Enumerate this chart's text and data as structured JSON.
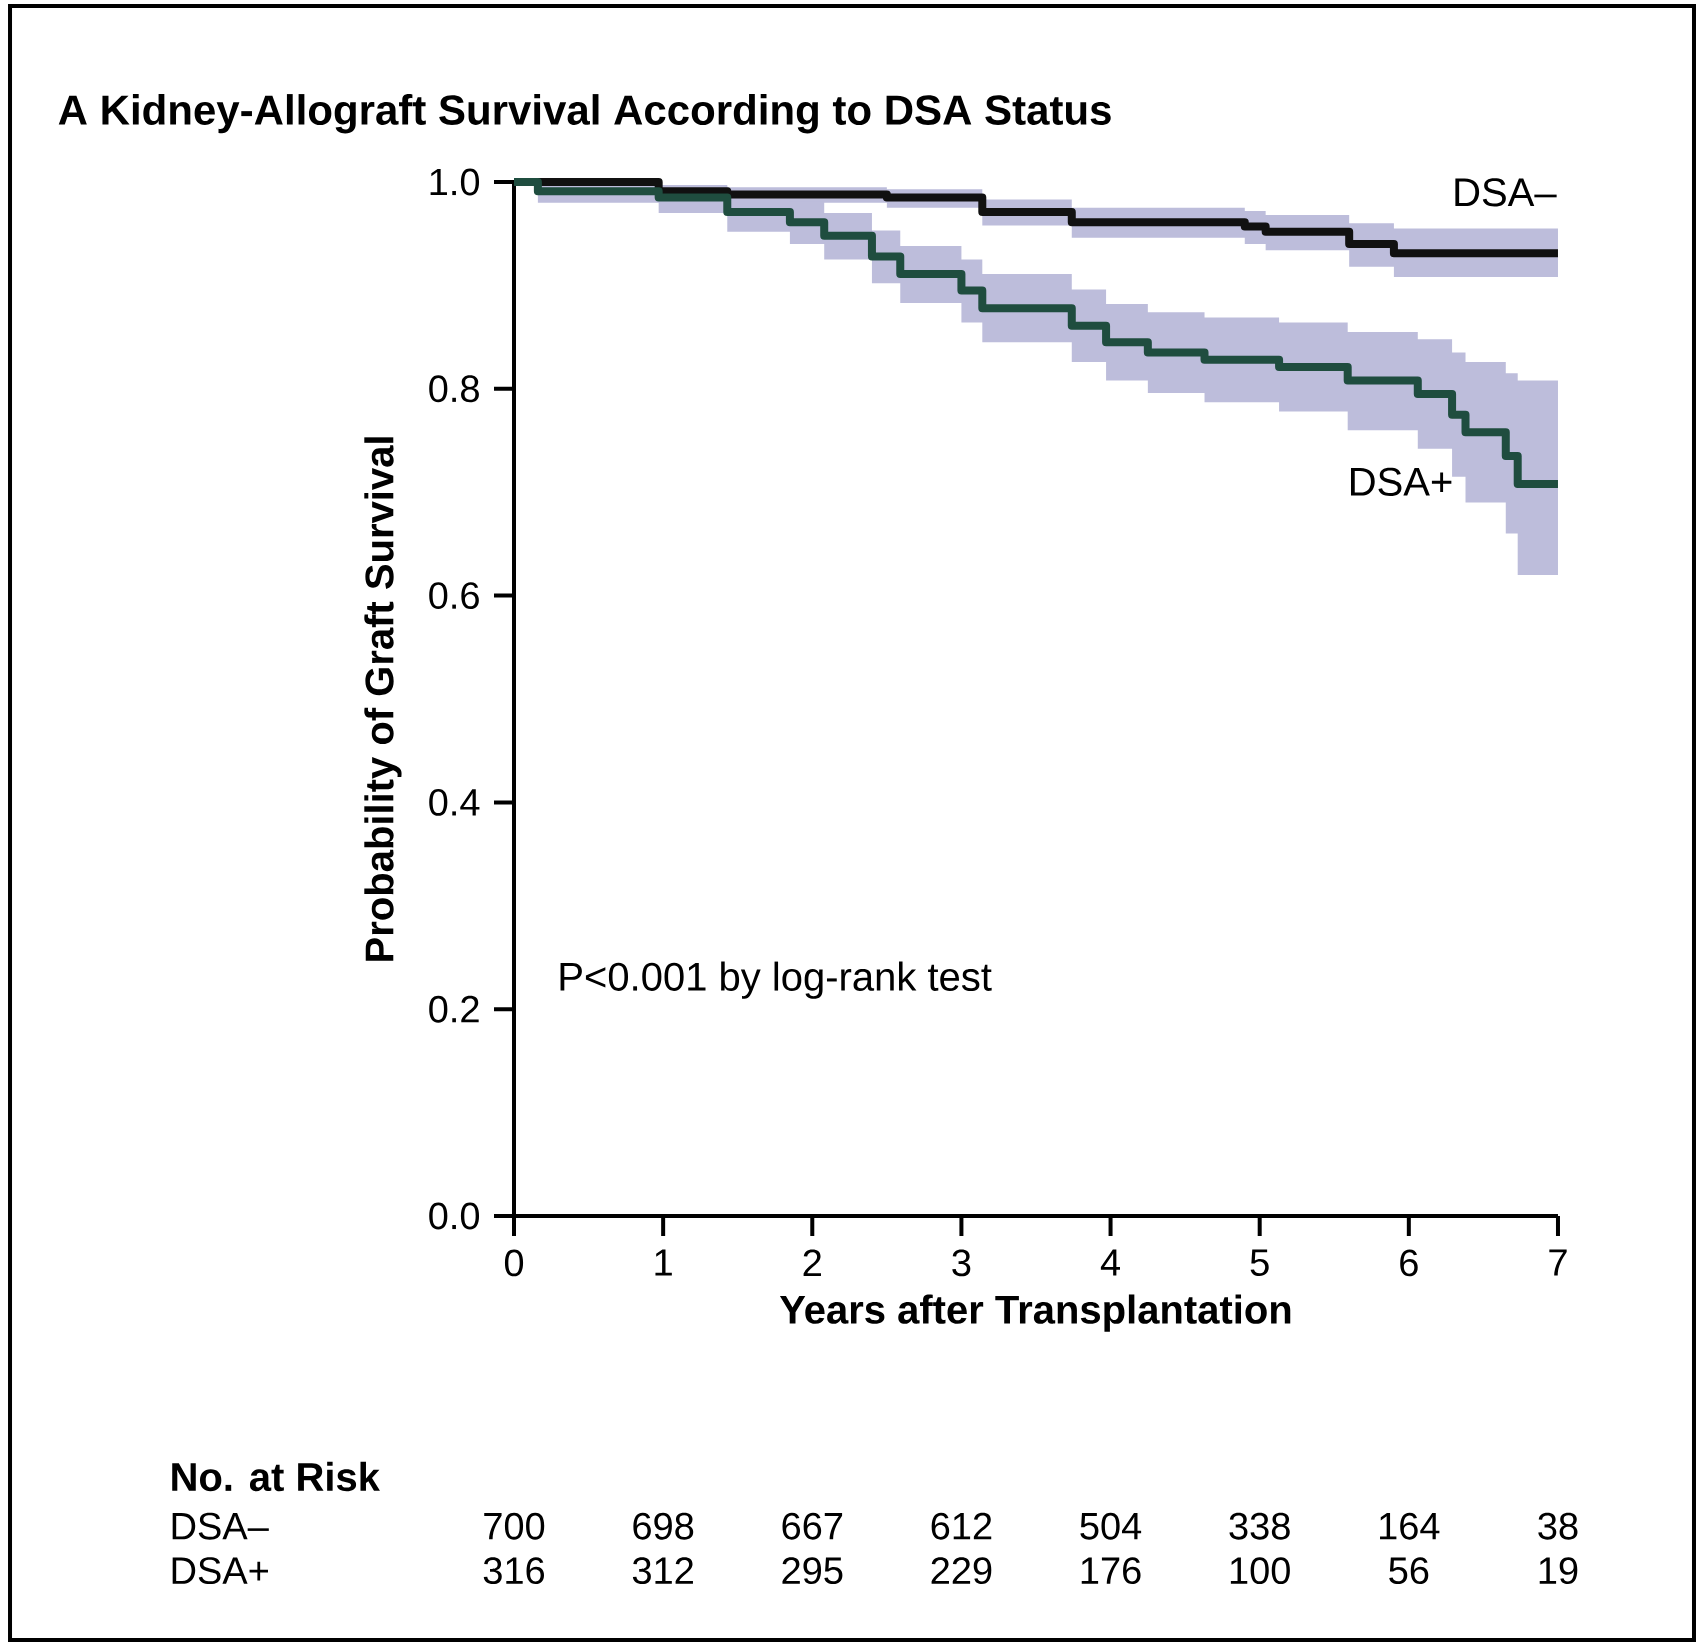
{
  "chart_data": {
    "type": "step",
    "title": "A  Kidney-Allograft Survival According to DSA Status",
    "xlabel": "Years after Transplantation",
    "ylabel": "Probability of Graft Survival",
    "xlim": [
      0,
      7
    ],
    "ylim": [
      0,
      1
    ],
    "xticks": [
      0,
      1,
      2,
      3,
      4,
      5,
      6,
      7
    ],
    "yticks": [
      {
        "value": 0,
        "label": "0.0"
      },
      {
        "value": 0.2,
        "label": "0.2"
      },
      {
        "value": 0.4,
        "label": "0.4"
      },
      {
        "value": 0.6,
        "label": "0.6"
      },
      {
        "value": 0.8,
        "label": "0.8"
      },
      {
        "value": 1,
        "label": "1.0"
      }
    ],
    "series": [
      {
        "name": "DSA–",
        "color": "#111111",
        "x": [
          0,
          0.97,
          1.43,
          2.5,
          3.14,
          3.74,
          4.9,
          5.04,
          5.6,
          5.9,
          7
        ],
        "values": [
          1,
          0.991,
          0.988,
          0.985,
          0.971,
          0.961,
          0.957,
          0.952,
          0.94,
          0.931,
          0.931
        ],
        "lower": [
          1,
          0.985,
          0.98,
          0.975,
          0.958,
          0.946,
          0.94,
          0.934,
          0.918,
          0.908,
          0.908
        ],
        "upper": [
          1,
          0.997,
          0.995,
          0.993,
          0.983,
          0.975,
          0.972,
          0.968,
          0.96,
          0.955,
          0.955
        ]
      },
      {
        "name": "DSA+",
        "color": "#1f4d3f",
        "x": [
          0,
          0.16,
          0.97,
          1.43,
          1.85,
          2.08,
          2.4,
          2.59,
          3.0,
          3.14,
          3.74,
          3.97,
          4.25,
          4.63,
          5.13,
          5.59,
          6.06,
          6.29,
          6.38,
          6.65,
          6.73,
          7
        ],
        "values": [
          1,
          0.991,
          0.985,
          0.971,
          0.961,
          0.948,
          0.928,
          0.911,
          0.895,
          0.878,
          0.861,
          0.845,
          0.835,
          0.828,
          0.821,
          0.808,
          0.795,
          0.775,
          0.758,
          0.735,
          0.708,
          0.708
        ],
        "lower": [
          1,
          0.98,
          0.97,
          0.952,
          0.94,
          0.925,
          0.902,
          0.883,
          0.864,
          0.845,
          0.826,
          0.808,
          0.796,
          0.787,
          0.778,
          0.76,
          0.742,
          0.715,
          0.69,
          0.66,
          0.62,
          0.62
        ],
        "upper": [
          1,
          1,
          0.996,
          0.988,
          0.981,
          0.97,
          0.953,
          0.938,
          0.925,
          0.911,
          0.896,
          0.882,
          0.874,
          0.869,
          0.864,
          0.855,
          0.848,
          0.835,
          0.826,
          0.815,
          0.808,
          0.808
        ]
      }
    ],
    "annotations": [
      "P<0.001 by log-rank test",
      "No. at Risk",
      "DSA–",
      "700",
      "698",
      "667",
      "612",
      "504",
      "338",
      "164",
      "38",
      "DSA+",
      "316",
      "312",
      "295",
      "229",
      "176",
      "100",
      "56",
      "19"
    ],
    "grid": false,
    "legend": false
  }
}
